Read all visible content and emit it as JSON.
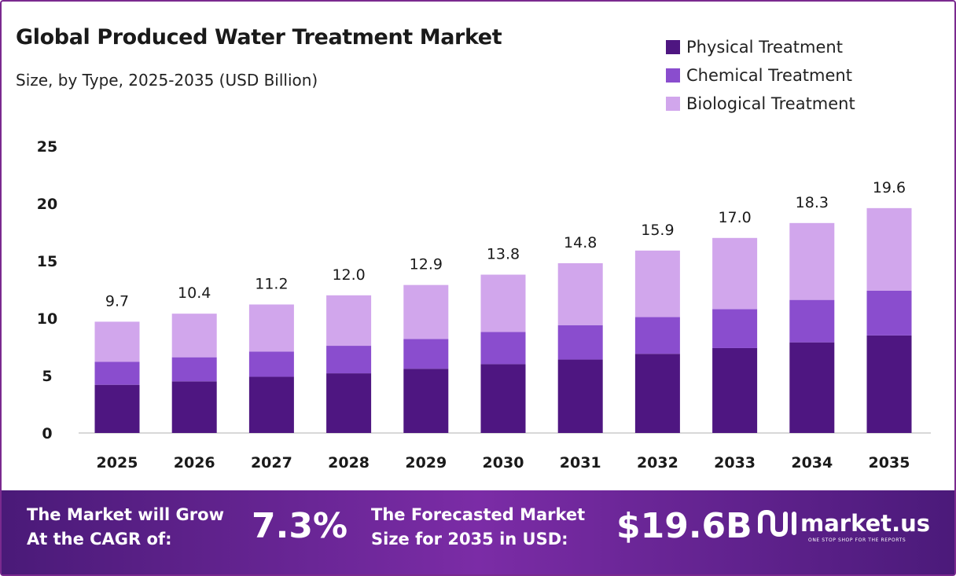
{
  "header": {
    "title": "Global Produced Water Treatment Market",
    "subtitle": "Size, by Type, 2025-2035 (USD Billion)"
  },
  "legend": [
    {
      "label": "Physical Treatment",
      "color": "#4e1681"
    },
    {
      "label": "Chemical Treatment",
      "color": "#8a4dce"
    },
    {
      "label": "Biological Treatment",
      "color": "#d1a6ec"
    }
  ],
  "chart_data": {
    "type": "bar",
    "stacked": true,
    "categories": [
      "2025",
      "2026",
      "2027",
      "2028",
      "2029",
      "2030",
      "2031",
      "2032",
      "2033",
      "2034",
      "2035"
    ],
    "series": [
      {
        "name": "Physical Treatment",
        "color": "#4e1681",
        "values": [
          4.2,
          4.5,
          4.9,
          5.2,
          5.6,
          6.0,
          6.4,
          6.9,
          7.4,
          7.9,
          8.5
        ]
      },
      {
        "name": "Chemical Treatment",
        "color": "#8a4dce",
        "values": [
          2.0,
          2.1,
          2.2,
          2.4,
          2.6,
          2.8,
          3.0,
          3.2,
          3.4,
          3.7,
          3.9
        ]
      },
      {
        "name": "Biological Treatment",
        "color": "#d1a6ec",
        "values": [
          3.5,
          3.8,
          4.1,
          4.4,
          4.7,
          5.0,
          5.4,
          5.8,
          6.2,
          6.7,
          7.2
        ]
      }
    ],
    "totals": [
      "9.7",
      "10.4",
      "11.2",
      "12.0",
      "12.9",
      "13.8",
      "14.8",
      "15.9",
      "17.0",
      "18.3",
      "19.6"
    ],
    "yticks": [
      0,
      5,
      10,
      15,
      20,
      25
    ],
    "ylim": [
      0,
      25
    ],
    "grid": false,
    "legend_position": "top-right"
  },
  "footer": {
    "cagr_label_line1": "The Market will Grow",
    "cagr_label_line2": "At the CAGR of:",
    "cagr_value": "7.3%",
    "forecast_label_line1": "The Forecasted Market",
    "forecast_label_line2": "Size for 2035 in USD:",
    "forecast_value": "$19.6B",
    "brand_name": "market.us",
    "brand_tagline": "ONE STOP SHOP FOR THE REPORTS"
  }
}
